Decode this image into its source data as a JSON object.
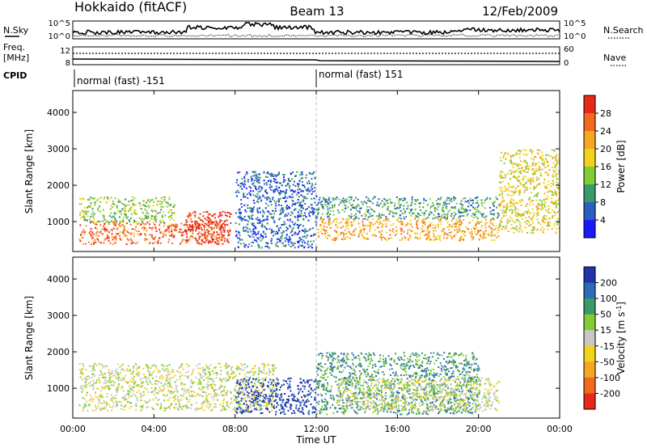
{
  "header": {
    "station": "Hokkaido (fitACF)",
    "beam": "Beam 13",
    "date": "12/Feb/2009"
  },
  "top_panels": {
    "nsky_label": "N.Sky",
    "nsky_ticks": [
      "10^5",
      "10^0"
    ],
    "nsearch_label": "N.Search",
    "nsearch_ticks": [
      "10^5",
      "10^0"
    ],
    "freq_label_1": "Freq.",
    "freq_label_2": "[MHz]",
    "freq_ticks": [
      "12",
      "8"
    ],
    "nave_label": "Nave",
    "nave_ticks": [
      "60",
      "0"
    ],
    "cpid_label": "CPID",
    "cpid_segments": [
      "normal (fast) -151",
      "normal (fast) 151"
    ]
  },
  "axes": {
    "ylabel": "Slant Range [km]",
    "y_ticks": [
      "1000",
      "2000",
      "3000",
      "4000"
    ],
    "x_ticks": [
      "00:00",
      "04:00",
      "08:00",
      "12:00",
      "16:00",
      "20:00",
      "00:00"
    ],
    "xlabel": "Time UT"
  },
  "power_scale": {
    "label": "Power [dB]",
    "ticks": [
      "4",
      "8",
      "12",
      "16",
      "20",
      "24",
      "28"
    ],
    "colors": [
      "#1a1aff",
      "#2a5fc0",
      "#3a9a6a",
      "#7fcc33",
      "#f2d21a",
      "#f5a623",
      "#f26b1d",
      "#e8291a"
    ]
  },
  "velocity_scale": {
    "label": "Velocity [m s",
    "label_sup": "-1",
    "label_end": "]",
    "ticks": [
      "200",
      "100",
      "50",
      "15",
      "-15",
      "-50",
      "-100",
      "-200"
    ],
    "colors": [
      "#2233aa",
      "#2f6cb8",
      "#3a9a6a",
      "#7fcc33",
      "#c8c8c0",
      "#f2d21a",
      "#f5a623",
      "#f26b1d",
      "#e8291a"
    ]
  },
  "chart_data": {
    "type": "heatmap",
    "x_range_hours": [
      0,
      24
    ],
    "y_range_km": [
      180,
      4600
    ],
    "grid": false,
    "power_regions": [
      {
        "t0": 0.3,
        "t1": 7.5,
        "r0": 400,
        "r1": 1000,
        "level": 6
      },
      {
        "t0": 0.3,
        "t1": 5.0,
        "r0": 1000,
        "r1": 1700,
        "level": 3
      },
      {
        "t0": 5.5,
        "t1": 7.8,
        "r0": 400,
        "r1": 1300,
        "level": 7
      },
      {
        "t0": 8.0,
        "t1": 12.0,
        "r0": 300,
        "r1": 2400,
        "level": 1
      },
      {
        "t0": 12.0,
        "t1": 21.0,
        "r0": 500,
        "r1": 1100,
        "level": 5
      },
      {
        "t0": 12.0,
        "t1": 21.0,
        "r0": 1100,
        "r1": 1700,
        "level": 2
      },
      {
        "t0": 21.0,
        "t1": 24.0,
        "r0": 700,
        "r1": 3000,
        "level": 4
      }
    ],
    "velocity_regions": [
      {
        "t0": 0.3,
        "t1": 10.0,
        "r0": 400,
        "r1": 1700,
        "level": 4
      },
      {
        "t0": 8.0,
        "t1": 12.0,
        "r0": 300,
        "r1": 1300,
        "level": 0
      },
      {
        "t0": 12.0,
        "t1": 20.0,
        "r0": 300,
        "r1": 2000,
        "level": 2
      },
      {
        "t0": 13.0,
        "t1": 21.0,
        "r0": 400,
        "r1": 1300,
        "level": 4
      }
    ]
  }
}
